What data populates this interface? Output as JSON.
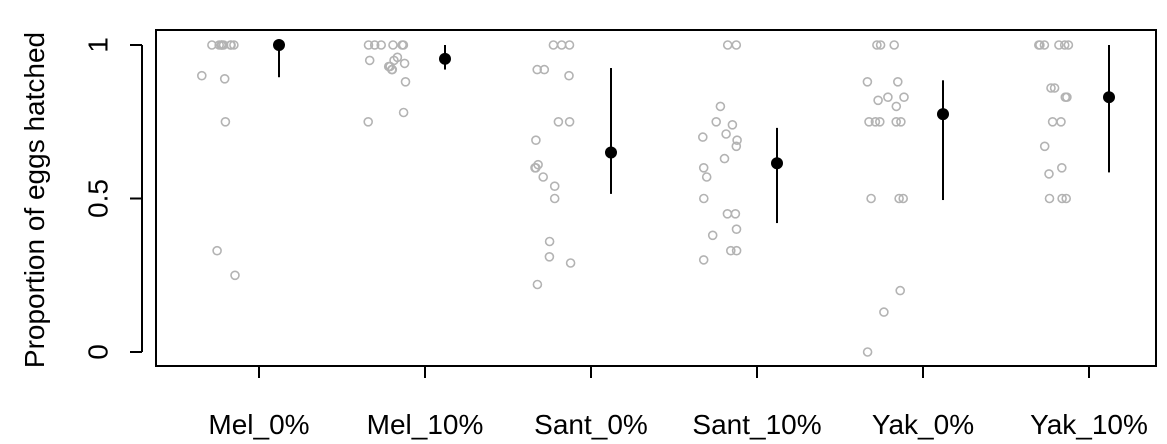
{
  "chart_data": {
    "type": "scatter",
    "title": "",
    "xlabel": "",
    "ylabel": "Proportion of eggs hatched",
    "ylim": [
      0,
      1
    ],
    "yticks": [
      0,
      0.5,
      1
    ],
    "ytick_labels": [
      "0",
      "0.5",
      "1"
    ],
    "grid": false,
    "legend": "none",
    "categories": [
      "Mel_0%",
      "Mel_10%",
      "Sant_0%",
      "Sant_10%",
      "Yak_0%",
      "Yak_10%"
    ],
    "colors": {
      "raw": "#b3b3b3",
      "mean": "#000000"
    },
    "groups": [
      {
        "category": "Mel_0%",
        "raw": [
          1,
          1,
          1,
          1,
          1,
          1,
          1,
          1,
          1,
          0.9,
          0.89,
          0.75,
          0.33,
          0.25
        ],
        "mean": 1.0,
        "lower": 0.895,
        "upper": 1.0
      },
      {
        "category": "Mel_10%",
        "raw": [
          1,
          1,
          1,
          1,
          1,
          1,
          0.96,
          0.95,
          0.95,
          0.94,
          0.93,
          0.93,
          0.92,
          0.92,
          0.88,
          0.78,
          0.75
        ],
        "mean": 0.955,
        "lower": 0.92,
        "upper": 1.0
      },
      {
        "category": "Sant_0%",
        "raw": [
          1,
          1,
          1,
          0.92,
          0.92,
          0.9,
          0.75,
          0.75,
          0.69,
          0.61,
          0.6,
          0.6,
          0.57,
          0.54,
          0.5,
          0.36,
          0.31,
          0.29,
          0.22
        ],
        "mean": 0.65,
        "lower": 0.515,
        "upper": 0.925
      },
      {
        "category": "Sant_10%",
        "raw": [
          1,
          1,
          0.8,
          0.75,
          0.74,
          0.71,
          0.7,
          0.69,
          0.67,
          0.63,
          0.6,
          0.57,
          0.5,
          0.45,
          0.45,
          0.4,
          0.38,
          0.33,
          0.33,
          0.3
        ],
        "mean": 0.615,
        "lower": 0.42,
        "upper": 0.73
      },
      {
        "category": "Yak_0%",
        "raw": [
          1,
          1,
          1,
          0.88,
          0.88,
          0.83,
          0.83,
          0.82,
          0.8,
          0.75,
          0.75,
          0.75,
          0.75,
          0.75,
          0.5,
          0.5,
          0.5,
          0.2,
          0.13,
          0.0
        ],
        "mean": 0.775,
        "lower": 0.495,
        "upper": 0.885
      },
      {
        "category": "Yak_10%",
        "raw": [
          1,
          1,
          1,
          1,
          1,
          1,
          0.86,
          0.86,
          0.83,
          0.83,
          0.75,
          0.75,
          0.67,
          0.6,
          0.58,
          0.5,
          0.5,
          0.5
        ],
        "mean": 0.83,
        "lower": 0.585,
        "upper": 1.0
      }
    ]
  }
}
